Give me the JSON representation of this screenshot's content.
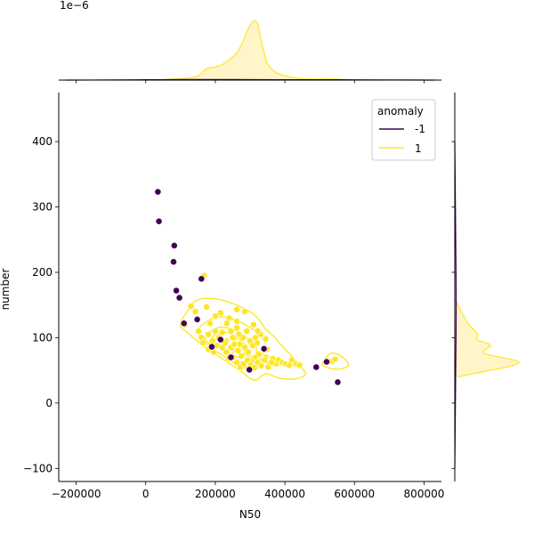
{
  "chart_data": {
    "type": "scatter",
    "title": "",
    "xlabel": "N50",
    "ylabel": "number",
    "xlim": [
      -250000,
      850000
    ],
    "ylim": [
      -120,
      475
    ],
    "x_ticks": [
      -200000,
      0,
      200000,
      400000,
      600000,
      800000
    ],
    "x_tick_labels": [
      "−200000",
      "0",
      "200000",
      "400000",
      "600000",
      "800000"
    ],
    "y_ticks": [
      -100,
      0,
      100,
      200,
      300,
      400
    ],
    "y_tick_labels": [
      "−100",
      "0",
      "100",
      "200",
      "300",
      "400"
    ],
    "top_marginal_offset_label": "1e−6",
    "grid": false,
    "legend": {
      "title": "anomaly",
      "placement": "upper right",
      "entries": [
        {
          "label": "-1",
          "color": "#440154"
        },
        {
          "label": "1",
          "color": "#fde725"
        }
      ]
    },
    "series": [
      {
        "name": "-1",
        "color": "#440154",
        "points": [
          [
            35000,
            323
          ],
          [
            38000,
            278
          ],
          [
            82000,
            241
          ],
          [
            80000,
            216
          ],
          [
            160000,
            190
          ],
          [
            88000,
            172
          ],
          [
            97000,
            161
          ],
          [
            148000,
            128
          ],
          [
            110000,
            122
          ],
          [
            190000,
            86
          ],
          [
            215000,
            97
          ],
          [
            245000,
            70
          ],
          [
            298000,
            51
          ],
          [
            340000,
            83
          ],
          [
            490000,
            55
          ],
          [
            520000,
            63
          ],
          [
            552000,
            32
          ]
        ]
      },
      {
        "name": "1",
        "color": "#fde725",
        "points": [
          [
            168000,
            195
          ],
          [
            113000,
            120
          ],
          [
            130000,
            148
          ],
          [
            143000,
            140
          ],
          [
            175000,
            147
          ],
          [
            185000,
            122
          ],
          [
            200000,
            133
          ],
          [
            215000,
            138
          ],
          [
            240000,
            130
          ],
          [
            262000,
            143
          ],
          [
            285000,
            140
          ],
          [
            262000,
            125
          ],
          [
            233000,
            122
          ],
          [
            152000,
            110
          ],
          [
            160000,
            100
          ],
          [
            165000,
            92
          ],
          [
            180000,
            105
          ],
          [
            192000,
            95
          ],
          [
            200000,
            110
          ],
          [
            210000,
            100
          ],
          [
            220000,
            108
          ],
          [
            232000,
            95
          ],
          [
            245000,
            110
          ],
          [
            255000,
            100
          ],
          [
            262000,
            115
          ],
          [
            270000,
            90
          ],
          [
            280000,
            100
          ],
          [
            290000,
            110
          ],
          [
            300000,
            95
          ],
          [
            310000,
            120
          ],
          [
            315000,
            100
          ],
          [
            320000,
            92
          ],
          [
            330000,
            105
          ],
          [
            345000,
            98
          ],
          [
            180000,
            82
          ],
          [
            195000,
            78
          ],
          [
            205000,
            88
          ],
          [
            220000,
            85
          ],
          [
            232000,
            78
          ],
          [
            245000,
            85
          ],
          [
            255000,
            90
          ],
          [
            265000,
            80
          ],
          [
            275000,
            72
          ],
          [
            285000,
            85
          ],
          [
            295000,
            78
          ],
          [
            305000,
            65
          ],
          [
            315000,
            70
          ],
          [
            325000,
            75
          ],
          [
            335000,
            65
          ],
          [
            345000,
            70
          ],
          [
            355000,
            60
          ],
          [
            365000,
            68
          ],
          [
            375000,
            60
          ],
          [
            262000,
            62
          ],
          [
            272000,
            55
          ],
          [
            282000,
            60
          ],
          [
            292000,
            66
          ],
          [
            302000,
            58
          ],
          [
            312000,
            54
          ],
          [
            322000,
            62
          ],
          [
            332000,
            57
          ],
          [
            342000,
            66
          ],
          [
            352000,
            55
          ],
          [
            362000,
            62
          ],
          [
            382000,
            66
          ],
          [
            392000,
            62
          ],
          [
            402000,
            60
          ],
          [
            412000,
            58
          ],
          [
            420000,
            66
          ],
          [
            432000,
            60
          ],
          [
            442000,
            58
          ],
          [
            250000,
            100
          ],
          [
            268000,
            105
          ],
          [
            308000,
            88
          ],
          [
            322000,
            110
          ],
          [
            238000,
            68
          ],
          [
            228000,
            92
          ],
          [
            348000,
            82
          ],
          [
            536000,
            64
          ],
          [
            544000,
            67
          ]
        ]
      }
    ],
    "kde_contours": [
      {
        "color": "#fde725",
        "points": [
          [
            100000,
            120
          ],
          [
            125000,
            145
          ],
          [
            150000,
            158
          ],
          [
            195000,
            160
          ],
          [
            235000,
            155
          ],
          [
            270000,
            148
          ],
          [
            300000,
            140
          ],
          [
            325000,
            128
          ],
          [
            345000,
            113
          ],
          [
            372000,
            100
          ],
          [
            395000,
            85
          ],
          [
            420000,
            72
          ],
          [
            440000,
            58
          ],
          [
            460000,
            45
          ],
          [
            432000,
            37
          ],
          [
            385000,
            38
          ],
          [
            345000,
            45
          ],
          [
            312000,
            35
          ],
          [
            270000,
            50
          ],
          [
            220000,
            68
          ],
          [
            160000,
            90
          ],
          [
            120000,
            108
          ]
        ]
      },
      {
        "color": "#fde725",
        "points": [
          [
            150000,
            112
          ],
          [
            185000,
            128
          ],
          [
            220000,
            132
          ],
          [
            255000,
            128
          ],
          [
            285000,
            120
          ],
          [
            320000,
            108
          ],
          [
            345000,
            90
          ],
          [
            330000,
            70
          ],
          [
            300000,
            55
          ],
          [
            265000,
            58
          ],
          [
            230000,
            70
          ],
          [
            195000,
            82
          ],
          [
            162000,
            98
          ]
        ]
      },
      {
        "color": "#fde725",
        "points": [
          [
            172000,
            102
          ],
          [
            205000,
            115
          ],
          [
            235000,
            115
          ],
          [
            262000,
            110
          ],
          [
            290000,
            100
          ],
          [
            318000,
            85
          ],
          [
            305000,
            64
          ],
          [
            275000,
            62
          ],
          [
            245000,
            72
          ],
          [
            210000,
            85
          ],
          [
            180000,
            92
          ]
        ]
      },
      {
        "color": "#fde725",
        "points": [
          [
            190000,
            100
          ],
          [
            218000,
            108
          ],
          [
            245000,
            106
          ],
          [
            268000,
            98
          ],
          [
            285000,
            88
          ],
          [
            280000,
            72
          ],
          [
            255000,
            72
          ],
          [
            228000,
            82
          ],
          [
            200000,
            90
          ]
        ]
      },
      {
        "color": "#fde725",
        "points": [
          [
            255000,
            82
          ],
          [
            280000,
            75
          ],
          [
            310000,
            70
          ],
          [
            330000,
            62
          ],
          [
            318000,
            52
          ],
          [
            292000,
            52
          ],
          [
            268000,
            62
          ],
          [
            252000,
            72
          ]
        ]
      },
      {
        "color": "#fde725",
        "points": [
          [
            508000,
            60
          ],
          [
            532000,
            76
          ],
          [
            566000,
            70
          ],
          [
            583000,
            58
          ],
          [
            557000,
            52
          ],
          [
            525000,
            54
          ]
        ]
      }
    ],
    "marginal_x": {
      "series": [
        {
          "name": "1",
          "color": "#fde725",
          "fill": "#fff5c8",
          "x": [
            0,
            40000,
            80000,
            120000,
            150000,
            175000,
            200000,
            225000,
            245000,
            262000,
            280000,
            292000,
            305000,
            312000,
            318000,
            323000,
            330000,
            338000,
            350000,
            370000,
            400000,
            440000,
            490000,
            520000,
            560000,
            600000
          ],
          "y": [
            0.0,
            0.02,
            0.06,
            0.12,
            0.25,
            0.68,
            0.78,
            0.98,
            1.3,
            1.62,
            2.32,
            2.96,
            3.42,
            3.52,
            3.5,
            3.25,
            2.52,
            1.82,
            0.98,
            0.52,
            0.26,
            0.1,
            0.06,
            0.08,
            0.04,
            0.0
          ]
        },
        {
          "name": "-1",
          "color": "#440154",
          "fill": "none",
          "x": [
            -230000,
            -100000,
            0,
            100000,
            250000,
            400000,
            550000,
            700000,
            830000
          ],
          "y": [
            0.0,
            0.01,
            0.02,
            0.03,
            0.03,
            0.02,
            0.02,
            0.01,
            0.0
          ]
        }
      ]
    },
    "marginal_y": {
      "series": [
        {
          "name": "1",
          "color": "#fde725",
          "fill": "#fff5c8",
          "y": [
            40,
            45,
            50,
            55,
            60,
            63,
            66,
            70,
            75,
            80,
            85,
            88,
            92,
            96,
            100,
            105,
            110,
            115,
            120,
            130,
            140,
            150,
            160
          ],
          "density": [
            0.05,
            0.3,
            0.55,
            0.82,
            0.97,
            1.0,
            0.92,
            0.72,
            0.48,
            0.46,
            0.52,
            0.56,
            0.5,
            0.36,
            0.34,
            0.36,
            0.32,
            0.27,
            0.22,
            0.16,
            0.1,
            0.05,
            0.0
          ]
        },
        {
          "name": "-1",
          "color": "#440154",
          "fill": "none",
          "y": [
            -100,
            0,
            100,
            200,
            300,
            400
          ],
          "density": [
            0.0,
            0.01,
            0.02,
            0.02,
            0.01,
            0.0
          ]
        }
      ]
    }
  }
}
